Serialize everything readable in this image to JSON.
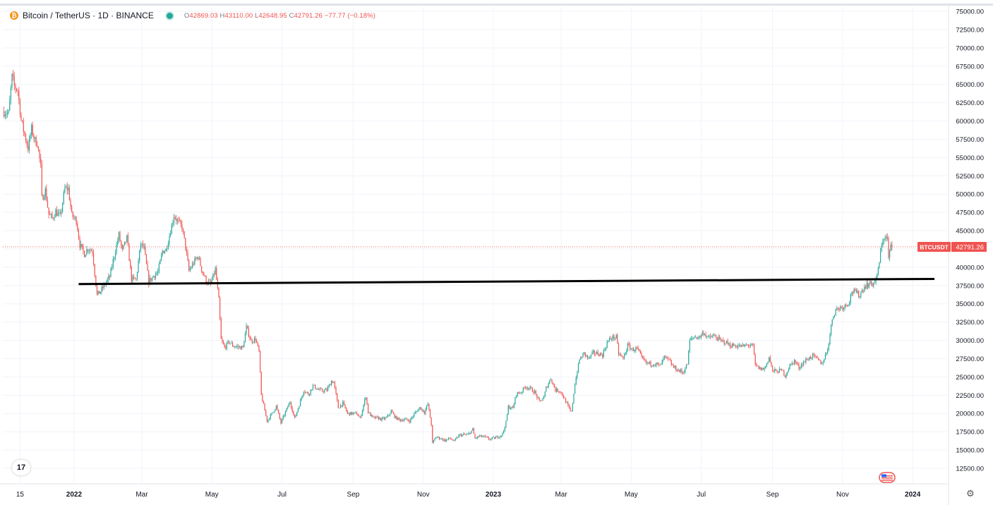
{
  "header": {
    "symbol": "Bitcoin / TetherUS · 1D · BINANCE",
    "coin_glyph": "₿",
    "ohlc": {
      "o_label": "O",
      "o": "42869.03",
      "h_label": "H",
      "h": "43110.00",
      "l_label": "L",
      "l": "42648.95",
      "c_label": "C",
      "c": "42791.26",
      "change": "−77.77 (−0.18%)"
    }
  },
  "colors": {
    "up": "#26a69a",
    "down": "#ef5350",
    "grid": "#f0f3fa",
    "axis_text": "#131722",
    "price_label_bg": "#ef5350",
    "support_line": "#000000"
  },
  "price_label": {
    "name": "BTCUSDT",
    "value": "42791.26"
  },
  "logo_text": "17",
  "settings_glyph": "⚙",
  "chart_data": {
    "type": "candlestick",
    "ylim": [
      11000,
      76000
    ],
    "y_ticks": [
      12500,
      15000,
      17500,
      20000,
      22500,
      25000,
      27500,
      30000,
      32500,
      35000,
      37500,
      40000,
      42500,
      45000,
      47500,
      50000,
      52500,
      55000,
      57500,
      60000,
      62500,
      65000,
      67500,
      70000,
      72500,
      75000
    ],
    "y_tick_labels": [
      "12500.00",
      "15000.00",
      "17500.00",
      "20000.00",
      "22500.00",
      "25000.00",
      "27500.00",
      "30000.00",
      "32500.00",
      "35000.00",
      "37500.00",
      "40000.00",
      "42500.00",
      "45000.00",
      "47500.00",
      "50000.00",
      "52500.00",
      "55000.00",
      "57500.00",
      "60000.00",
      "62500.00",
      "65000.00",
      "67500.00",
      "70000.00",
      "72500.00",
      "75000.00"
    ],
    "x_range": [
      "2021-10-31",
      "2024-01-31"
    ],
    "x_ticks": [
      {
        "date": "2021-11-15",
        "label": "15",
        "bold": false
      },
      {
        "date": "2022-01-01",
        "label": "2022",
        "bold": true
      },
      {
        "date": "2022-03-01",
        "label": "Mar",
        "bold": false
      },
      {
        "date": "2022-05-01",
        "label": "May",
        "bold": false
      },
      {
        "date": "2022-07-01",
        "label": "Jul",
        "bold": false
      },
      {
        "date": "2022-09-01",
        "label": "Sep",
        "bold": false
      },
      {
        "date": "2022-11-01",
        "label": "Nov",
        "bold": false
      },
      {
        "date": "2023-01-01",
        "label": "2023",
        "bold": true
      },
      {
        "date": "2023-03-01",
        "label": "Mar",
        "bold": false
      },
      {
        "date": "2023-05-01",
        "label": "May",
        "bold": false
      },
      {
        "date": "2023-07-01",
        "label": "Jul",
        "bold": false
      },
      {
        "date": "2023-09-01",
        "label": "Sep",
        "bold": false
      },
      {
        "date": "2023-11-01",
        "label": "Nov",
        "bold": false
      },
      {
        "date": "2024-01-01",
        "label": "2024",
        "bold": true
      }
    ],
    "last_price": 42791.26,
    "support_line": {
      "start": [
        "2022-01-05",
        37700
      ],
      "end": [
        "2024-01-20",
        38400
      ]
    },
    "close_series": [
      [
        "2021-11-01",
        61300
      ],
      [
        "2021-11-05",
        61000
      ],
      [
        "2021-11-08",
        66000
      ],
      [
        "2021-11-10",
        64800
      ],
      [
        "2021-11-13",
        64200
      ],
      [
        "2021-11-16",
        60100
      ],
      [
        "2021-11-19",
        58100
      ],
      [
        "2021-11-22",
        56300
      ],
      [
        "2021-11-25",
        58900
      ],
      [
        "2021-11-28",
        57300
      ],
      [
        "2021-11-30",
        57000
      ],
      [
        "2021-12-03",
        53700
      ],
      [
        "2021-12-04",
        49400
      ],
      [
        "2021-12-07",
        50500
      ],
      [
        "2021-12-10",
        47200
      ],
      [
        "2021-12-13",
        46700
      ],
      [
        "2021-12-16",
        47600
      ],
      [
        "2021-12-20",
        46900
      ],
      [
        "2021-12-24",
        50800
      ],
      [
        "2021-12-27",
        50700
      ],
      [
        "2021-12-30",
        47100
      ],
      [
        "2022-01-03",
        46400
      ],
      [
        "2022-01-06",
        43100
      ],
      [
        "2022-01-10",
        41800
      ],
      [
        "2022-01-13",
        42600
      ],
      [
        "2022-01-17",
        42200
      ],
      [
        "2022-01-21",
        36200
      ],
      [
        "2022-01-24",
        36700
      ],
      [
        "2022-01-28",
        37700
      ],
      [
        "2022-02-01",
        38700
      ],
      [
        "2022-02-05",
        41600
      ],
      [
        "2022-02-09",
        44400
      ],
      [
        "2022-02-12",
        42200
      ],
      [
        "2022-02-16",
        44000
      ],
      [
        "2022-02-20",
        38400
      ],
      [
        "2022-02-24",
        38300
      ],
      [
        "2022-02-28",
        43200
      ],
      [
        "2022-03-03",
        42500
      ],
      [
        "2022-03-07",
        38000
      ],
      [
        "2022-03-11",
        38800
      ],
      [
        "2022-03-15",
        39300
      ],
      [
        "2022-03-19",
        42200
      ],
      [
        "2022-03-22",
        42400
      ],
      [
        "2022-03-25",
        44300
      ],
      [
        "2022-03-29",
        47100
      ],
      [
        "2022-04-01",
        46300
      ],
      [
        "2022-04-05",
        45500
      ],
      [
        "2022-04-08",
        42800
      ],
      [
        "2022-04-11",
        39500
      ],
      [
        "2022-04-15",
        40600
      ],
      [
        "2022-04-19",
        41500
      ],
      [
        "2022-04-22",
        39700
      ],
      [
        "2022-04-26",
        38100
      ],
      [
        "2022-04-30",
        37700
      ],
      [
        "2022-05-04",
        39700
      ],
      [
        "2022-05-07",
        35500
      ],
      [
        "2022-05-09",
        30100
      ],
      [
        "2022-05-12",
        29000
      ],
      [
        "2022-05-16",
        29800
      ],
      [
        "2022-05-20",
        29200
      ],
      [
        "2022-05-24",
        29100
      ],
      [
        "2022-05-28",
        29000
      ],
      [
        "2022-05-31",
        31800
      ],
      [
        "2022-06-04",
        29900
      ],
      [
        "2022-06-08",
        30200
      ],
      [
        "2022-06-11",
        28400
      ],
      [
        "2022-06-13",
        22500
      ],
      [
        "2022-06-16",
        20400
      ],
      [
        "2022-06-18",
        19000
      ],
      [
        "2022-06-22",
        19900
      ],
      [
        "2022-06-26",
        21000
      ],
      [
        "2022-06-30",
        18700
      ],
      [
        "2022-07-04",
        20200
      ],
      [
        "2022-07-08",
        21600
      ],
      [
        "2022-07-12",
        19300
      ],
      [
        "2022-07-16",
        21200
      ],
      [
        "2022-07-20",
        23200
      ],
      [
        "2022-07-24",
        22600
      ],
      [
        "2022-07-28",
        23800
      ],
      [
        "2022-08-01",
        23300
      ],
      [
        "2022-08-05",
        23100
      ],
      [
        "2022-08-09",
        23200
      ],
      [
        "2022-08-13",
        24400
      ],
      [
        "2022-08-15",
        24300
      ],
      [
        "2022-08-19",
        20800
      ],
      [
        "2022-08-23",
        21400
      ],
      [
        "2022-08-27",
        20000
      ],
      [
        "2022-08-31",
        20000
      ],
      [
        "2022-09-04",
        20000
      ],
      [
        "2022-09-07",
        19300
      ],
      [
        "2022-09-12",
        22400
      ],
      [
        "2022-09-14",
        20200
      ],
      [
        "2022-09-18",
        19400
      ],
      [
        "2022-09-22",
        19400
      ],
      [
        "2022-09-26",
        19200
      ],
      [
        "2022-09-30",
        19400
      ],
      [
        "2022-10-04",
        20300
      ],
      [
        "2022-10-08",
        19400
      ],
      [
        "2022-10-12",
        19100
      ],
      [
        "2022-10-16",
        19200
      ],
      [
        "2022-10-20",
        19000
      ],
      [
        "2022-10-25",
        20100
      ],
      [
        "2022-10-29",
        20800
      ],
      [
        "2022-11-02",
        20200
      ],
      [
        "2022-11-05",
        21300
      ],
      [
        "2022-11-08",
        18500
      ],
      [
        "2022-11-09",
        15900
      ],
      [
        "2022-11-12",
        16800
      ],
      [
        "2022-11-16",
        16600
      ],
      [
        "2022-11-20",
        16300
      ],
      [
        "2022-11-24",
        16600
      ],
      [
        "2022-11-28",
        16200
      ],
      [
        "2022-12-02",
        17000
      ],
      [
        "2022-12-06",
        17100
      ],
      [
        "2022-12-10",
        17100
      ],
      [
        "2022-12-14",
        17800
      ],
      [
        "2022-12-16",
        16600
      ],
      [
        "2022-12-20",
        16900
      ],
      [
        "2022-12-24",
        16800
      ],
      [
        "2022-12-28",
        16500
      ],
      [
        "2023-01-01",
        16600
      ],
      [
        "2023-01-05",
        16800
      ],
      [
        "2023-01-09",
        17200
      ],
      [
        "2023-01-12",
        18800
      ],
      [
        "2023-01-14",
        20900
      ],
      [
        "2023-01-18",
        20700
      ],
      [
        "2023-01-21",
        22700
      ],
      [
        "2023-01-25",
        22900
      ],
      [
        "2023-01-29",
        23700
      ],
      [
        "2023-02-02",
        23400
      ],
      [
        "2023-02-06",
        22900
      ],
      [
        "2023-02-10",
        21600
      ],
      [
        "2023-02-14",
        22200
      ],
      [
        "2023-02-16",
        23500
      ],
      [
        "2023-02-20",
        24800
      ],
      [
        "2023-02-24",
        23200
      ],
      [
        "2023-02-28",
        23100
      ],
      [
        "2023-03-03",
        22300
      ],
      [
        "2023-03-09",
        20300
      ],
      [
        "2023-03-10",
        20200
      ],
      [
        "2023-03-13",
        24100
      ],
      [
        "2023-03-17",
        27400
      ],
      [
        "2023-03-21",
        28200
      ],
      [
        "2023-03-25",
        27500
      ],
      [
        "2023-03-29",
        28300
      ],
      [
        "2023-04-02",
        28200
      ],
      [
        "2023-04-06",
        28000
      ],
      [
        "2023-04-10",
        29700
      ],
      [
        "2023-04-14",
        30400
      ],
      [
        "2023-04-18",
        30400
      ],
      [
        "2023-04-20",
        28200
      ],
      [
        "2023-04-24",
        27500
      ],
      [
        "2023-04-28",
        29300
      ],
      [
        "2023-05-02",
        28700
      ],
      [
        "2023-05-06",
        28900
      ],
      [
        "2023-05-10",
        27600
      ],
      [
        "2023-05-14",
        26900
      ],
      [
        "2023-05-18",
        26800
      ],
      [
        "2023-05-22",
        26800
      ],
      [
        "2023-05-26",
        26500
      ],
      [
        "2023-05-30",
        27700
      ],
      [
        "2023-06-03",
        27200
      ],
      [
        "2023-06-07",
        26300
      ],
      [
        "2023-06-11",
        25900
      ],
      [
        "2023-06-15",
        25600
      ],
      [
        "2023-06-19",
        26800
      ],
      [
        "2023-06-21",
        30000
      ],
      [
        "2023-06-25",
        30500
      ],
      [
        "2023-06-29",
        30400
      ],
      [
        "2023-07-03",
        31100
      ],
      [
        "2023-07-07",
        30300
      ],
      [
        "2023-07-11",
        30600
      ],
      [
        "2023-07-14",
        30400
      ],
      [
        "2023-07-18",
        29900
      ],
      [
        "2023-07-22",
        29800
      ],
      [
        "2023-07-26",
        29300
      ],
      [
        "2023-07-30",
        29300
      ],
      [
        "2023-08-03",
        29200
      ],
      [
        "2023-08-07",
        29200
      ],
      [
        "2023-08-11",
        29400
      ],
      [
        "2023-08-15",
        29200
      ],
      [
        "2023-08-17",
        26600
      ],
      [
        "2023-08-21",
        26100
      ],
      [
        "2023-08-25",
        26100
      ],
      [
        "2023-08-29",
        27700
      ],
      [
        "2023-09-01",
        25800
      ],
      [
        "2023-09-05",
        25800
      ],
      [
        "2023-09-09",
        25900
      ],
      [
        "2023-09-12",
        25200
      ],
      [
        "2023-09-16",
        26500
      ],
      [
        "2023-09-20",
        27200
      ],
      [
        "2023-09-24",
        26300
      ],
      [
        "2023-09-28",
        27000
      ],
      [
        "2023-10-02",
        27500
      ],
      [
        "2023-10-06",
        27900
      ],
      [
        "2023-10-10",
        27400
      ],
      [
        "2023-10-14",
        26800
      ],
      [
        "2023-10-18",
        28300
      ],
      [
        "2023-10-20",
        29700
      ],
      [
        "2023-10-23",
        33000
      ],
      [
        "2023-10-26",
        34200
      ],
      [
        "2023-10-30",
        34500
      ],
      [
        "2023-11-03",
        34700
      ],
      [
        "2023-11-07",
        35400
      ],
      [
        "2023-11-09",
        36700
      ],
      [
        "2023-11-13",
        36500
      ],
      [
        "2023-11-16",
        36200
      ],
      [
        "2023-11-20",
        37400
      ],
      [
        "2023-11-24",
        37700
      ],
      [
        "2023-11-28",
        37800
      ],
      [
        "2023-12-01",
        38700
      ],
      [
        "2023-12-04",
        41900
      ],
      [
        "2023-12-06",
        43800
      ],
      [
        "2023-12-08",
        44200
      ],
      [
        "2023-12-10",
        43800
      ],
      [
        "2023-12-11",
        41300
      ],
      [
        "2023-12-13",
        42900
      ],
      [
        "2023-12-14",
        42791.26
      ]
    ]
  }
}
